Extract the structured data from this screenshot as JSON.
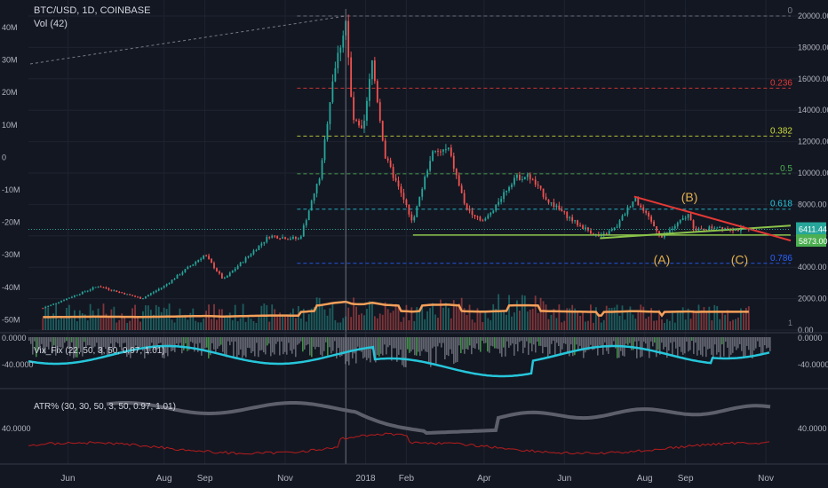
{
  "chart_data": {
    "type": "candlestick",
    "symbol_title": "BTC/USD, 1D, COINBASE",
    "volume_label": "Vol (42)",
    "price_axis_ticks": [
      "20000.00",
      "18000.00",
      "16000.00",
      "14000.00",
      "12000.00",
      "10000.00",
      "8000.00",
      "6000.00",
      "4000.00",
      "2000.00",
      "0.00"
    ],
    "volume_axis_ticks": [
      "40M",
      "30M",
      "20M",
      "10M",
      "0",
      "-10M",
      "-20M",
      "-30M",
      "-40M",
      "-50M"
    ],
    "time_axis_ticks": [
      "Jun",
      "Aug",
      "Sep",
      "Nov",
      "2018",
      "Feb",
      "Apr",
      "Jun",
      "Aug",
      "Sep",
      "Nov"
    ],
    "current_price_label": "6411.44",
    "low_price_label": "5873.00",
    "fib_levels": [
      {
        "label": "0",
        "price": 20000,
        "color": "#787b86"
      },
      {
        "label": "0.236",
        "price": 15400,
        "color": "#e53935"
      },
      {
        "label": "0.382",
        "price": 12350,
        "color": "#cddc39"
      },
      {
        "label": "0.5",
        "price": 9950,
        "color": "#4caf50"
      },
      {
        "label": "0.618",
        "price": 7700,
        "color": "#26c6da"
      },
      {
        "label": "0.786",
        "price": 4250,
        "color": "#2962ff"
      }
    ],
    "wave_labels": [
      "(A)",
      "(B)",
      "(C)"
    ],
    "price_series": [
      {
        "date": "2017-05-01",
        "price": 1400
      },
      {
        "date": "2017-05-25",
        "price": 2200
      },
      {
        "date": "2017-06-12",
        "price": 2800
      },
      {
        "date": "2017-07-15",
        "price": 2000
      },
      {
        "date": "2017-08-01",
        "price": 2800
      },
      {
        "date": "2017-09-01",
        "price": 4800
      },
      {
        "date": "2017-09-15",
        "price": 3200
      },
      {
        "date": "2017-10-20",
        "price": 6000
      },
      {
        "date": "2017-11-12",
        "price": 5800
      },
      {
        "date": "2017-11-28",
        "price": 10000
      },
      {
        "date": "2017-12-07",
        "price": 16000
      },
      {
        "date": "2017-12-17",
        "price": 19700
      },
      {
        "date": "2017-12-22",
        "price": 13500
      },
      {
        "date": "2017-12-30",
        "price": 12500
      },
      {
        "date": "2018-01-06",
        "price": 17100
      },
      {
        "date": "2018-01-16",
        "price": 11000
      },
      {
        "date": "2018-02-06",
        "price": 6900
      },
      {
        "date": "2018-02-20",
        "price": 11200
      },
      {
        "date": "2018-03-05",
        "price": 11500
      },
      {
        "date": "2018-03-18",
        "price": 7800
      },
      {
        "date": "2018-04-01",
        "price": 6900
      },
      {
        "date": "2018-04-24",
        "price": 9700
      },
      {
        "date": "2018-05-05",
        "price": 9800
      },
      {
        "date": "2018-05-20",
        "price": 8200
      },
      {
        "date": "2018-06-10",
        "price": 6800
      },
      {
        "date": "2018-06-28",
        "price": 5900
      },
      {
        "date": "2018-07-10",
        "price": 6500
      },
      {
        "date": "2018-07-24",
        "price": 8400
      },
      {
        "date": "2018-08-14",
        "price": 5900
      },
      {
        "date": "2018-09-04",
        "price": 7400
      },
      {
        "date": "2018-09-08",
        "price": 6300
      },
      {
        "date": "2018-09-25",
        "price": 6600
      },
      {
        "date": "2018-10-10",
        "price": 6400
      },
      {
        "date": "2018-10-20",
        "price": 6411
      }
    ],
    "ma_label": "1",
    "indicator1": {
      "label": "Vix_Fix (22, 50, 3, 50, 0.97, 1.01)",
      "axis_ticks": [
        "0.0000",
        "-40.0000"
      ]
    },
    "indicator2": {
      "label": "ATR% (30, 30, 50, 3, 50, 0.97, 1.01)",
      "axis_ticks": [
        "40.0000"
      ]
    },
    "colors": {
      "up": "#26a69a",
      "down": "#ef5350",
      "ma": "#f5a05a",
      "vix": "#26c6da",
      "bg": "#131722"
    }
  }
}
